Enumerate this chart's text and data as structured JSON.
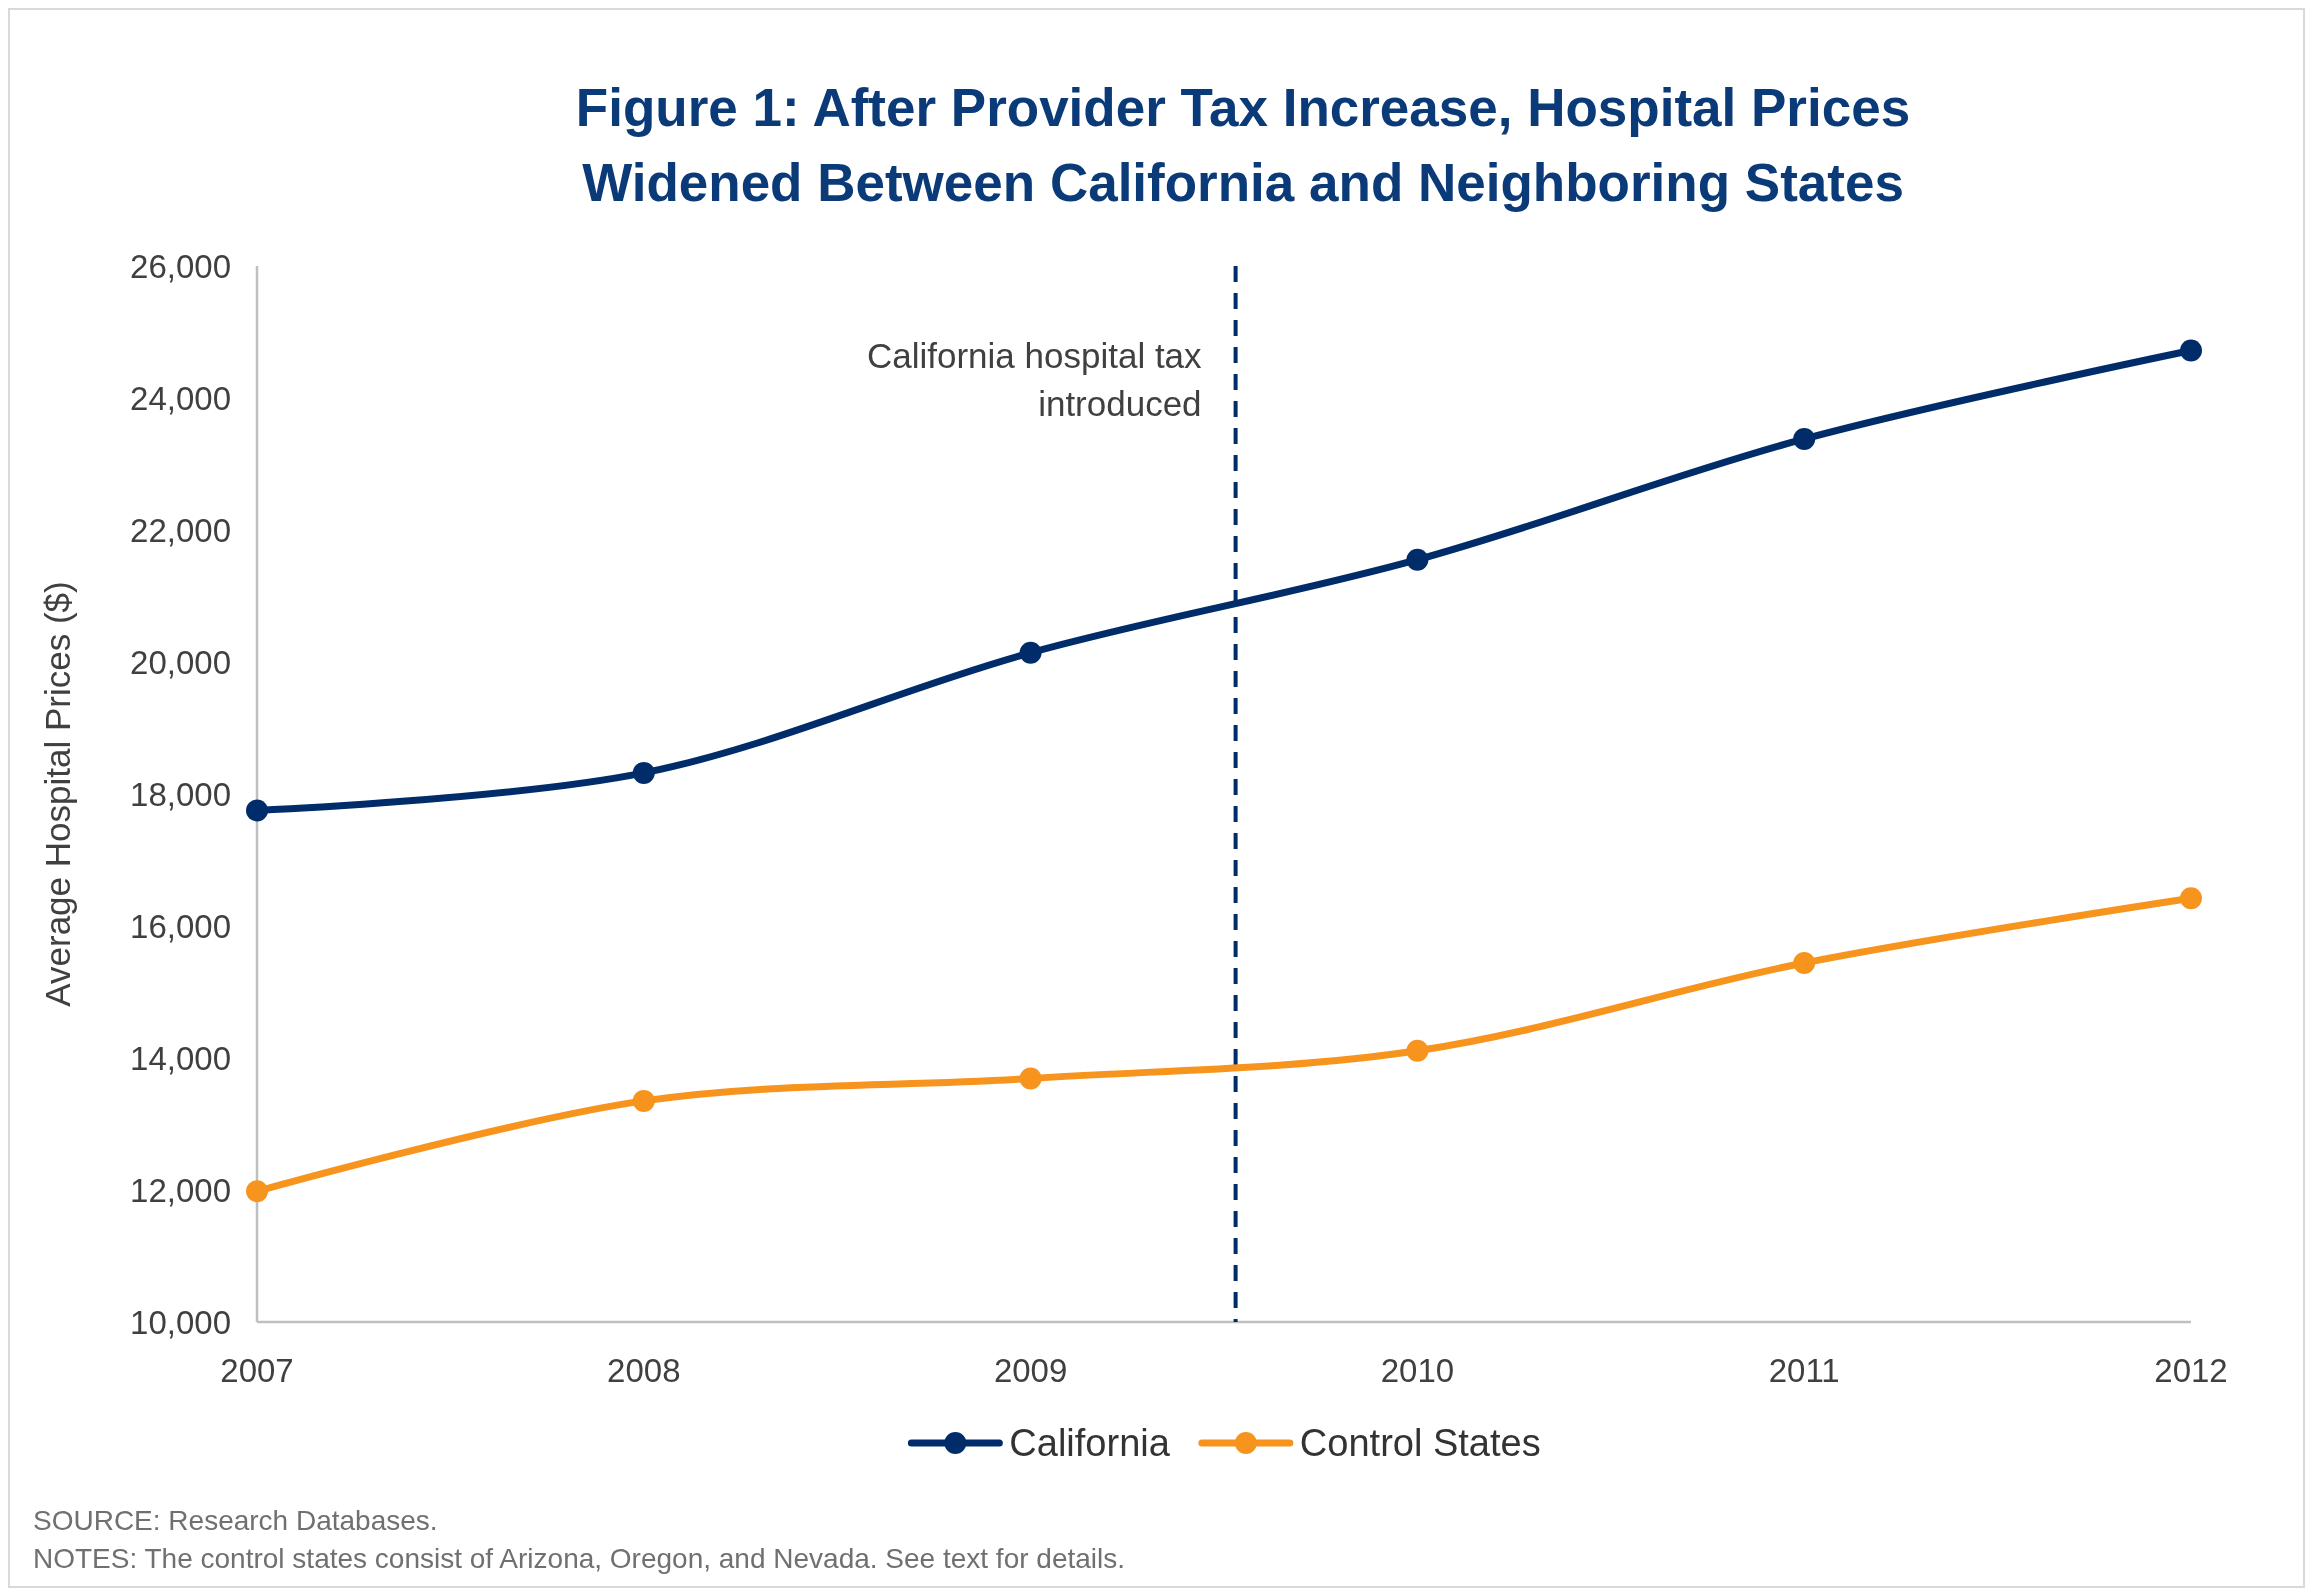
{
  "chart_data": {
    "type": "line",
    "title": "Figure 1: After Provider Tax Increase, Hospital Prices Widened Between California and Neighboring States",
    "ylabel": "Average Hospital Prices ($)",
    "x": [
      2007,
      2008,
      2009,
      2010,
      2011,
      2012
    ],
    "xlim": [
      2007,
      2012
    ],
    "xticks": [
      2007,
      2008,
      2009,
      2010,
      2011,
      2012
    ],
    "ylim": [
      10000,
      26000
    ],
    "yticks": [
      {
        "value": 10000,
        "label": "10,000"
      },
      {
        "value": 12000,
        "label": "12,000"
      },
      {
        "value": 14000,
        "label": "14,000"
      },
      {
        "value": 16000,
        "label": "16,000"
      },
      {
        "value": 18000,
        "label": "18,000"
      },
      {
        "value": 20000,
        "label": "20,000"
      },
      {
        "value": 22000,
        "label": "22,000"
      },
      {
        "value": 24000,
        "label": "24,000"
      },
      {
        "value": 26000,
        "label": "26,000"
      }
    ],
    "series": [
      {
        "name": "California",
        "color": "#002d6a",
        "values": [
          17750,
          18320,
          20140,
          21550,
          23380,
          24720
        ]
      },
      {
        "name": "Control States",
        "color": "#f7941d",
        "values": [
          11980,
          13350,
          13690,
          14110,
          15440,
          16420
        ]
      }
    ],
    "ref_lines": [
      {
        "axis": "x",
        "value": 2009.53,
        "label": "California hospital tax introduced",
        "color": "#002d6a",
        "line_style": "dashed"
      }
    ],
    "annotations": [
      "SOURCE: Research Databases.",
      "NOTES: The control states consist of Arizona, Oregon, and Nevada. See text for details."
    ],
    "legend": "bottom",
    "marker": "circle",
    "line_style": "solid"
  }
}
